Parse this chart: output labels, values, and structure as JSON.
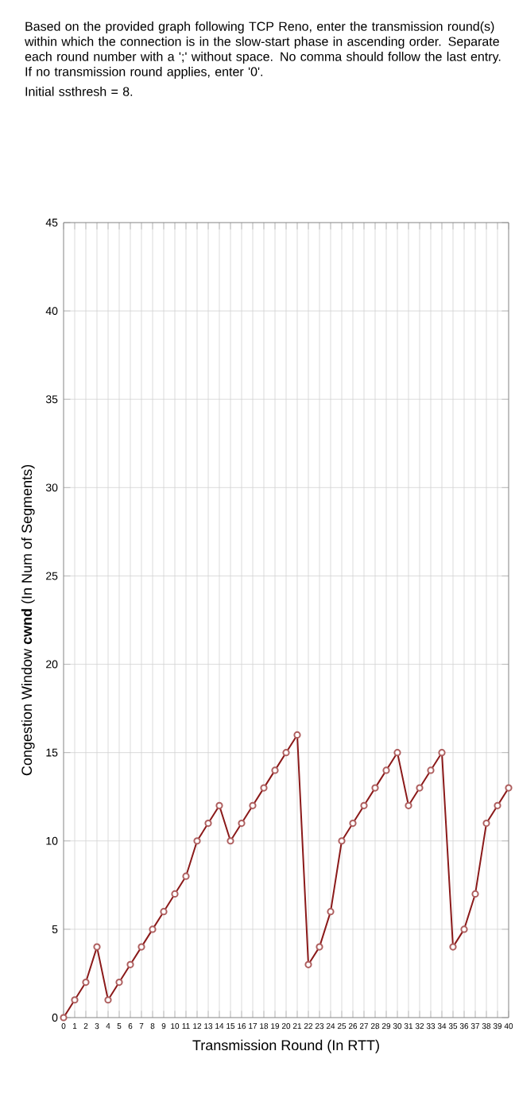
{
  "chart_data": {
    "type": "line",
    "ylabel": "Congestion Window **cwnd** (In Num of Segments)",
    "xlabel": "Transmission Round (In RTT)",
    "annotations": [
      "Based on the provided graph following TCP Reno, enter the transmission round(s) within which the connection is in the slow-start phase in ascending order. Separate each round number with a ';' without space. No comma should follow the last entry. If no transmission round applies, enter '0'.",
      "Initial ssthresh = 8."
    ],
    "x": [
      0,
      1,
      2,
      3,
      4,
      5,
      6,
      7,
      8,
      9,
      10,
      11,
      12,
      13,
      14,
      15,
      16,
      17,
      18,
      19,
      20,
      21,
      22,
      23,
      24,
      25,
      26,
      27,
      28,
      29,
      30,
      31,
      32,
      33,
      34,
      35,
      36,
      37,
      38,
      39,
      40
    ],
    "series": [
      {
        "color": "#8b1a1a",
        "values": [
          0,
          1,
          2,
          4,
          1,
          2,
          3,
          4,
          5,
          6,
          7,
          8,
          10,
          11,
          12,
          10,
          11,
          12,
          13,
          14,
          15,
          16,
          3,
          4,
          6,
          10,
          11,
          12,
          13,
          14,
          15,
          12,
          13,
          14,
          15,
          4,
          5,
          7,
          11,
          12,
          13
        ]
      }
    ],
    "xlim": [
      0,
      40
    ],
    "ylim": [
      0,
      45
    ],
    "xticks": [
      0,
      1,
      2,
      3,
      4,
      5,
      6,
      7,
      8,
      9,
      10,
      11,
      12,
      13,
      14,
      15,
      16,
      17,
      18,
      19,
      20,
      21,
      22,
      23,
      24,
      25,
      26,
      27,
      28,
      29,
      30,
      31,
      32,
      33,
      34,
      35,
      36,
      37,
      38,
      39,
      40
    ],
    "yticks": [
      0,
      5,
      10,
      15,
      20,
      25,
      30,
      35,
      40,
      45
    ],
    "grid": true,
    "marker": "circle",
    "line_style": "solid"
  }
}
